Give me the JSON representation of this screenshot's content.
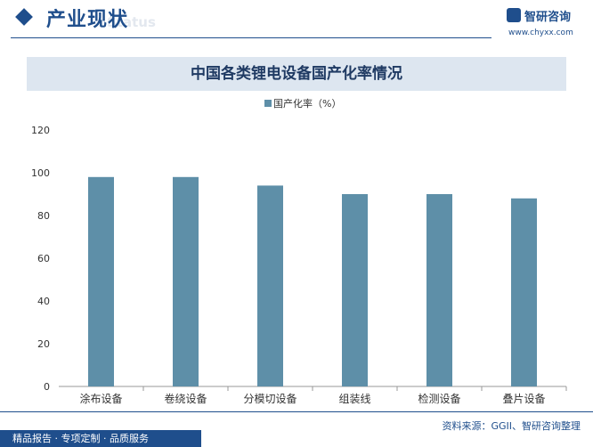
{
  "header": {
    "section_title": "产业现状",
    "section_subtitle": "Status",
    "logo_text": "智研咨询",
    "logo_url": "www.chyxx.com"
  },
  "colors": {
    "brand": "#1f4e8c",
    "bar": "#5e8fa8",
    "title_band": "#dde6f0"
  },
  "chart_data": {
    "type": "bar",
    "title": "中国各类锂电设备国产化率情况",
    "categories": [
      "涂布设备",
      "卷绕设备",
      "分模切设备",
      "组装线",
      "检测设备",
      "叠片设备"
    ],
    "series": [
      {
        "name": "国产化率（%）",
        "values": [
          98,
          98,
          94,
          90,
          90,
          88
        ]
      }
    ],
    "ylim": [
      0,
      120
    ],
    "yticks": [
      0,
      20,
      40,
      60,
      80,
      100,
      120
    ],
    "xlabel": "",
    "ylabel": "",
    "legend_position": "top-center",
    "grid": false
  },
  "footer": {
    "source": "资料来源：GGII、智研咨询整理",
    "services": "精品报告 · 专项定制 · 品质服务"
  }
}
